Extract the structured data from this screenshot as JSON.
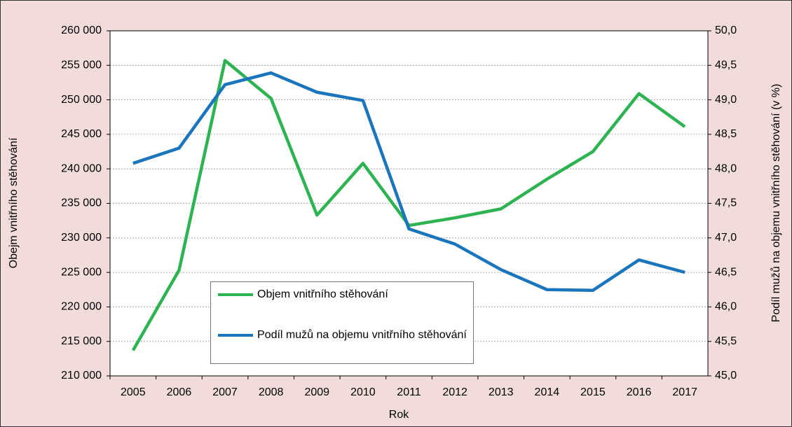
{
  "chart_data": {
    "type": "line",
    "x_label": "Rok",
    "y_label": "Obejm vnitřního stěhování",
    "y2_label": "Podíl mužů na objemu vnitřního stěhování (v %)",
    "categories": [
      "2005",
      "2006",
      "2007",
      "2008",
      "2009",
      "2010",
      "2011",
      "2012",
      "2013",
      "2014",
      "2015",
      "2016",
      "2017"
    ],
    "series": [
      {
        "name": "Objem vnitřního stěhování",
        "color": "#2db352",
        "values": [
          213700,
          225300,
          255700,
          250200,
          233300,
          240800,
          231800,
          232900,
          234200,
          238500,
          242500,
          250900,
          246100
        ]
      },
      {
        "name": "Podíl mužů na objemu vnitřního stěhování",
        "color": "#1b75bc",
        "axis": "y2",
        "values": [
          48.08,
          48.3,
          49.22,
          49.39,
          49.11,
          48.99,
          47.13,
          46.91,
          46.54,
          46.25,
          46.24,
          46.68,
          46.5
        ]
      }
    ],
    "ylim": [
      210000,
      260000
    ],
    "yticks": [
      {
        "value": 210000,
        "label": "210 000"
      },
      {
        "value": 215000,
        "label": "215 000"
      },
      {
        "value": 220000,
        "label": "220 000"
      },
      {
        "value": 225000,
        "label": "225 000"
      },
      {
        "value": 230000,
        "label": "230 000"
      },
      {
        "value": 235000,
        "label": "235 000"
      },
      {
        "value": 240000,
        "label": "240 000"
      },
      {
        "value": 245000,
        "label": "245 000"
      },
      {
        "value": 250000,
        "label": "250 000"
      },
      {
        "value": 255000,
        "label": "255 000"
      },
      {
        "value": 260000,
        "label": "260 000"
      }
    ],
    "y2lim": [
      45,
      50
    ],
    "y2ticks": [
      {
        "value": 45,
        "label": "45,0"
      },
      {
        "value": 45.5,
        "label": "45,5"
      },
      {
        "value": 46,
        "label": "46,0"
      },
      {
        "value": 46.5,
        "label": "46,5"
      },
      {
        "value": 47,
        "label": "47,0"
      },
      {
        "value": 47.5,
        "label": "47,5"
      },
      {
        "value": 48,
        "label": "48,0"
      },
      {
        "value": 48.5,
        "label": "48,5"
      },
      {
        "value": 49,
        "label": "49,0"
      },
      {
        "value": 49.5,
        "label": "49,5"
      },
      {
        "value": 50,
        "label": "50,0"
      }
    ],
    "grid": true
  }
}
